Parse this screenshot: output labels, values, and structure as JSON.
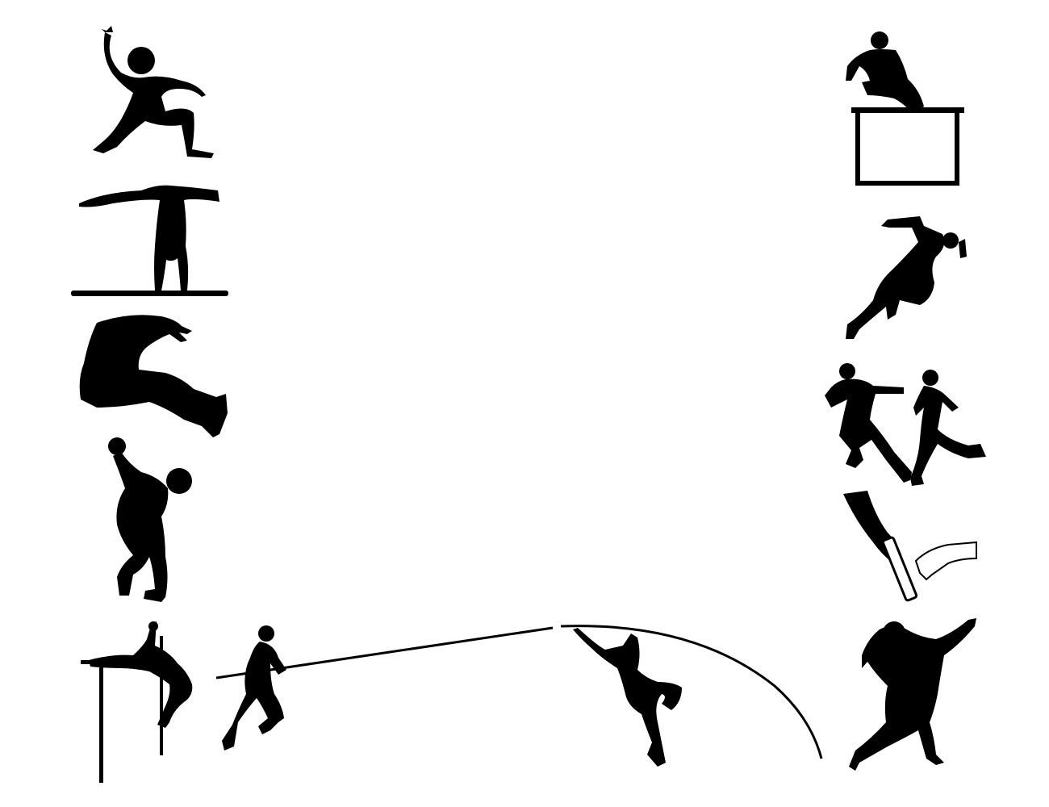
{
  "canvas": {
    "background": "#ffffff",
    "ink": "#000000"
  },
  "figures": [
    {
      "name": "long-jump-leap-silhouette",
      "icon": "athlete-leap"
    },
    {
      "name": "gymnast-handstand-silhouette",
      "icon": "gymnast-beam"
    },
    {
      "name": "long-jump-landing-silhouette",
      "icon": "athlete-landing"
    },
    {
      "name": "discus-thrower-silhouette",
      "icon": "athlete-throw"
    },
    {
      "name": "high-jump-silhouette",
      "icon": "athlete-high-jump"
    },
    {
      "name": "pole-vault-runner-silhouette",
      "icon": "athlete-run-pole"
    },
    {
      "name": "pole-vault-jump-silhouette",
      "icon": "athlete-vault"
    },
    {
      "name": "hurdler-silhouette",
      "icon": "athlete-hurdle"
    },
    {
      "name": "sprinter-silhouette",
      "icon": "athlete-sprint"
    },
    {
      "name": "runners-pair-silhouette",
      "icon": "athletes-running"
    },
    {
      "name": "relay-baton-handoff-silhouette",
      "icon": "relay-baton"
    },
    {
      "name": "shot-put-silhouette",
      "icon": "athlete-shot-put"
    }
  ]
}
